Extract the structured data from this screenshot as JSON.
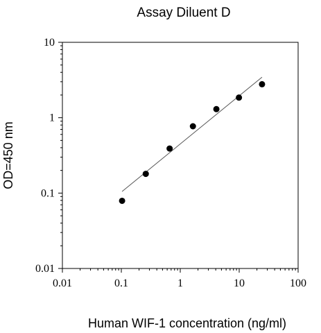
{
  "chart_data": {
    "type": "scatter",
    "title": "Assay Diluent D",
    "xlabel": "Human WIF-1 concentration (ng/ml)",
    "ylabel": "OD=450 nm",
    "xscale": "log",
    "yscale": "log",
    "xlim": [
      0.01,
      100
    ],
    "ylim": [
      0.01,
      10
    ],
    "xticks": [
      {
        "value": 0.01,
        "label": "0.01"
      },
      {
        "value": 0.1,
        "label": "0.1"
      },
      {
        "value": 1,
        "label": "1"
      },
      {
        "value": 10,
        "label": "10"
      },
      {
        "value": 100,
        "label": "100"
      }
    ],
    "yticks": [
      {
        "value": 0.01,
        "label": "0.01"
      },
      {
        "value": 0.1,
        "label": "0.1"
      },
      {
        "value": 1,
        "label": "1"
      },
      {
        "value": 10,
        "label": "10"
      }
    ],
    "grid": false,
    "legend": "none",
    "series": [
      {
        "x": [
          0.103,
          0.26,
          0.66,
          1.64,
          4.1,
          9.9,
          24.4
        ],
        "y": [
          0.079,
          0.18,
          0.39,
          0.77,
          1.3,
          1.85,
          2.78
        ],
        "color": "#000000"
      }
    ],
    "fit_line": {
      "x": [
        0.103,
        24.4
      ],
      "y": [
        0.105,
        3.45
      ],
      "color": "#555555"
    }
  }
}
